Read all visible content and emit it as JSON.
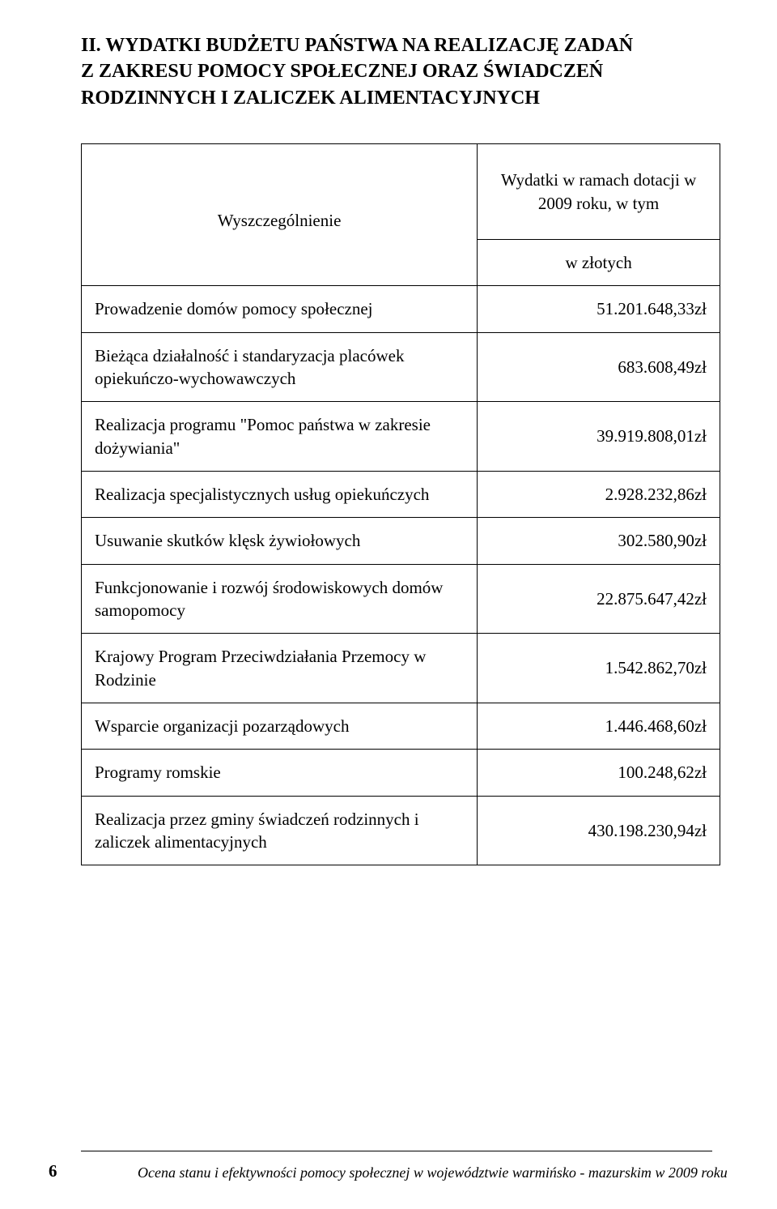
{
  "title_lines": [
    "II. WYDATKI BUDŻETU PAŃSTWA NA REALIZACJĘ ZADAŃ",
    "Z ZAKRESU POMOCY SPOŁECZNEJ ORAZ ŚWIADCZEŃ",
    "RODZINNYCH I ZALICZEK ALIMENTACYJNYCH"
  ],
  "table": {
    "columns": [
      "Wyszczególnienie",
      "Wydatki w ramach dotacji w 2009 roku, w tym"
    ],
    "unit_row": "w złotych",
    "rows": [
      {
        "label": "Prowadzenie domów pomocy społecznej",
        "value": "51.201.648,33zł"
      },
      {
        "label": "Bieżąca działalność i standaryzacja placówek opiekuńczo-wychowawczych",
        "value": "683.608,49zł"
      },
      {
        "label": "Realizacja programu \"Pomoc państwa w zakresie dożywiania\"",
        "value": "39.919.808,01zł"
      },
      {
        "label": "Realizacja specjalistycznych usług opiekuńczych",
        "value": "2.928.232,86zł"
      },
      {
        "label": "Usuwanie skutków klęsk żywiołowych",
        "value": "302.580,90zł"
      },
      {
        "label": "Funkcjonowanie i rozwój środowiskowych domów samopomocy",
        "value": "22.875.647,42zł"
      },
      {
        "label": "Krajowy Program Przeciwdziałania Przemocy w Rodzinie",
        "value": "1.542.862,70zł"
      },
      {
        "label": "Wsparcie organizacji pozarządowych",
        "value": "1.446.468,60zł"
      },
      {
        "label": "Programy romskie",
        "value": "100.248,62zł"
      },
      {
        "label": "Realizacja przez gminy świadczeń rodzinnych i zaliczek alimentacyjnych",
        "value": "430.198.230,94zł"
      }
    ],
    "border_color": "#000000",
    "label_fontsize": 21,
    "value_fontsize": 21,
    "value_align": "right",
    "label_align": "left"
  },
  "footer": {
    "page_number": "6",
    "text": "Ocena stanu i efektywności pomocy społecznej w województwie warmińsko - mazurskim w 2009 roku"
  },
  "colors": {
    "background": "#ffffff",
    "text": "#000000",
    "border": "#000000"
  },
  "typography": {
    "title_fontsize": 24,
    "title_fontweight": "bold",
    "body_fontsize": 21,
    "footer_fontsize": 18,
    "font_family": "Garamond / serif"
  }
}
